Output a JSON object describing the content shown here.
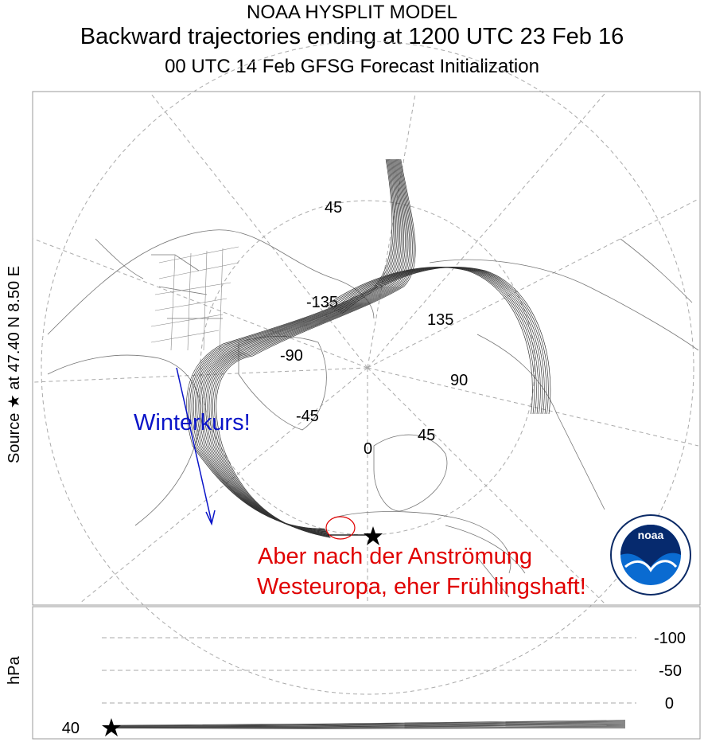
{
  "header": {
    "line1": "NOAA HYSPLIT MODEL",
    "line2": "Backward trajectories ending at 1200 UTC 23 Feb 16",
    "line3": "00 UTC 14 Feb    GFSG  Forecast Initialization"
  },
  "source_label": "Source ★ at    47.40 N     8.50 E",
  "map": {
    "longitude_labels": [
      "45",
      "-135",
      "135",
      "-90",
      "90",
      "-45",
      "45",
      "0"
    ],
    "annotations": {
      "winterkurs": "Winterkurs!",
      "red_line1": "Aber nach der Anströmung",
      "red_line2": "Westeuropa, eher Frühlingshaft!"
    },
    "colors": {
      "trajectory": "#333333",
      "annotation_blue": "#0a14c8",
      "annotation_red": "#e00000",
      "grid": "#aaaaaa"
    }
  },
  "logo": {
    "text": "noaa",
    "ring_text": "NATIONAL OCEANIC AND ATMOSPHERIC ADMINISTRATION",
    "bottom_text": "DEPARTMENT OF COMMERCE"
  },
  "profile": {
    "ylabel": "hPa",
    "ticks": [
      "-100",
      "-50",
      "0"
    ],
    "start_level": "40"
  }
}
